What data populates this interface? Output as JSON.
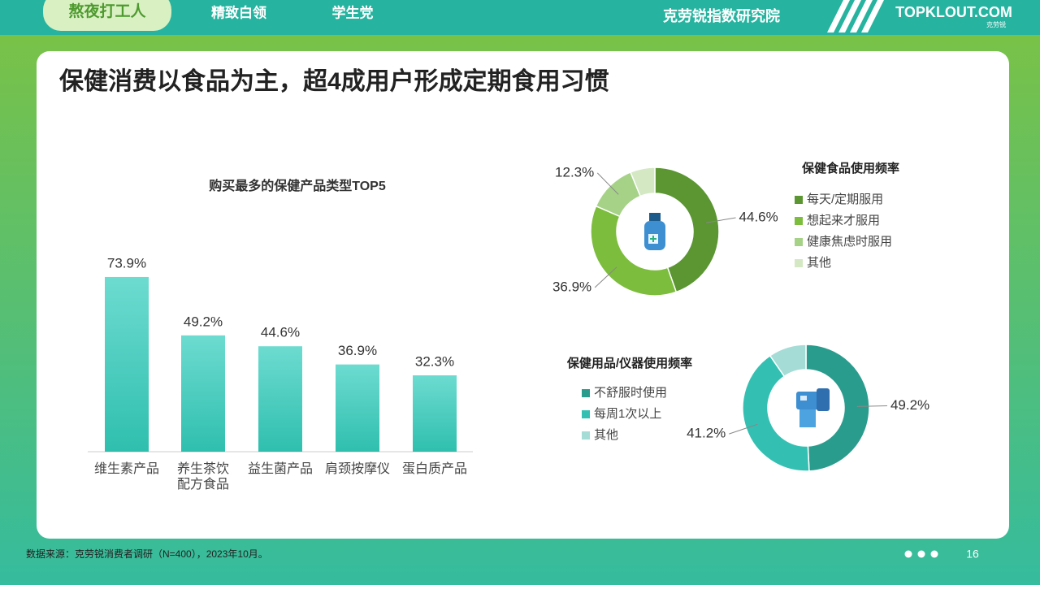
{
  "header": {
    "tabs": [
      "熬夜打工人",
      "精致白领",
      "学生党"
    ],
    "brand": "克劳锐指数研究院",
    "logo": "TOPKLOUT.COM",
    "logo_sub": "克劳锐"
  },
  "title": "保健消费以食品为主，超4成用户形成定期食用习惯",
  "chart_data": [
    {
      "type": "bar",
      "title": "购买最多的保健产品类型TOP5",
      "categories": [
        "维生素产品",
        "养生茶饮配方食品",
        "益生菌产品",
        "肩颈按摩仪",
        "蛋白质产品"
      ],
      "values": [
        73.9,
        49.2,
        44.6,
        36.9,
        32.3
      ],
      "value_labels": [
        "73.9%",
        "49.2%",
        "44.6%",
        "36.9%",
        "32.3%"
      ],
      "color": "#4fd1c5"
    },
    {
      "type": "donut",
      "title": "保健食品使用频率",
      "categories": [
        "每天/定期服用",
        "想起来才服用",
        "健康焦虑时服用",
        "其他"
      ],
      "values": [
        44.6,
        36.9,
        12.3,
        6.2
      ],
      "value_labels": [
        "44.6%",
        "36.9%",
        "12.3%",
        null
      ],
      "colors": [
        "#5b9632",
        "#7dbd3d",
        "#a6d288",
        "#d3e8c3"
      ]
    },
    {
      "type": "donut",
      "title": "保健用品/仪器使用频率",
      "categories": [
        "不舒服时使用",
        "每周1次以上",
        "其他"
      ],
      "values": [
        49.2,
        41.2,
        9.6
      ],
      "value_labels": [
        "49.2%",
        "41.2%",
        null
      ],
      "colors": [
        "#2a9c8e",
        "#33c0b2",
        "#a5dcd6"
      ]
    }
  ],
  "footer": {
    "source": "数据来源：克劳锐消费者调研（N=400），2023年10月。",
    "page": "16"
  }
}
